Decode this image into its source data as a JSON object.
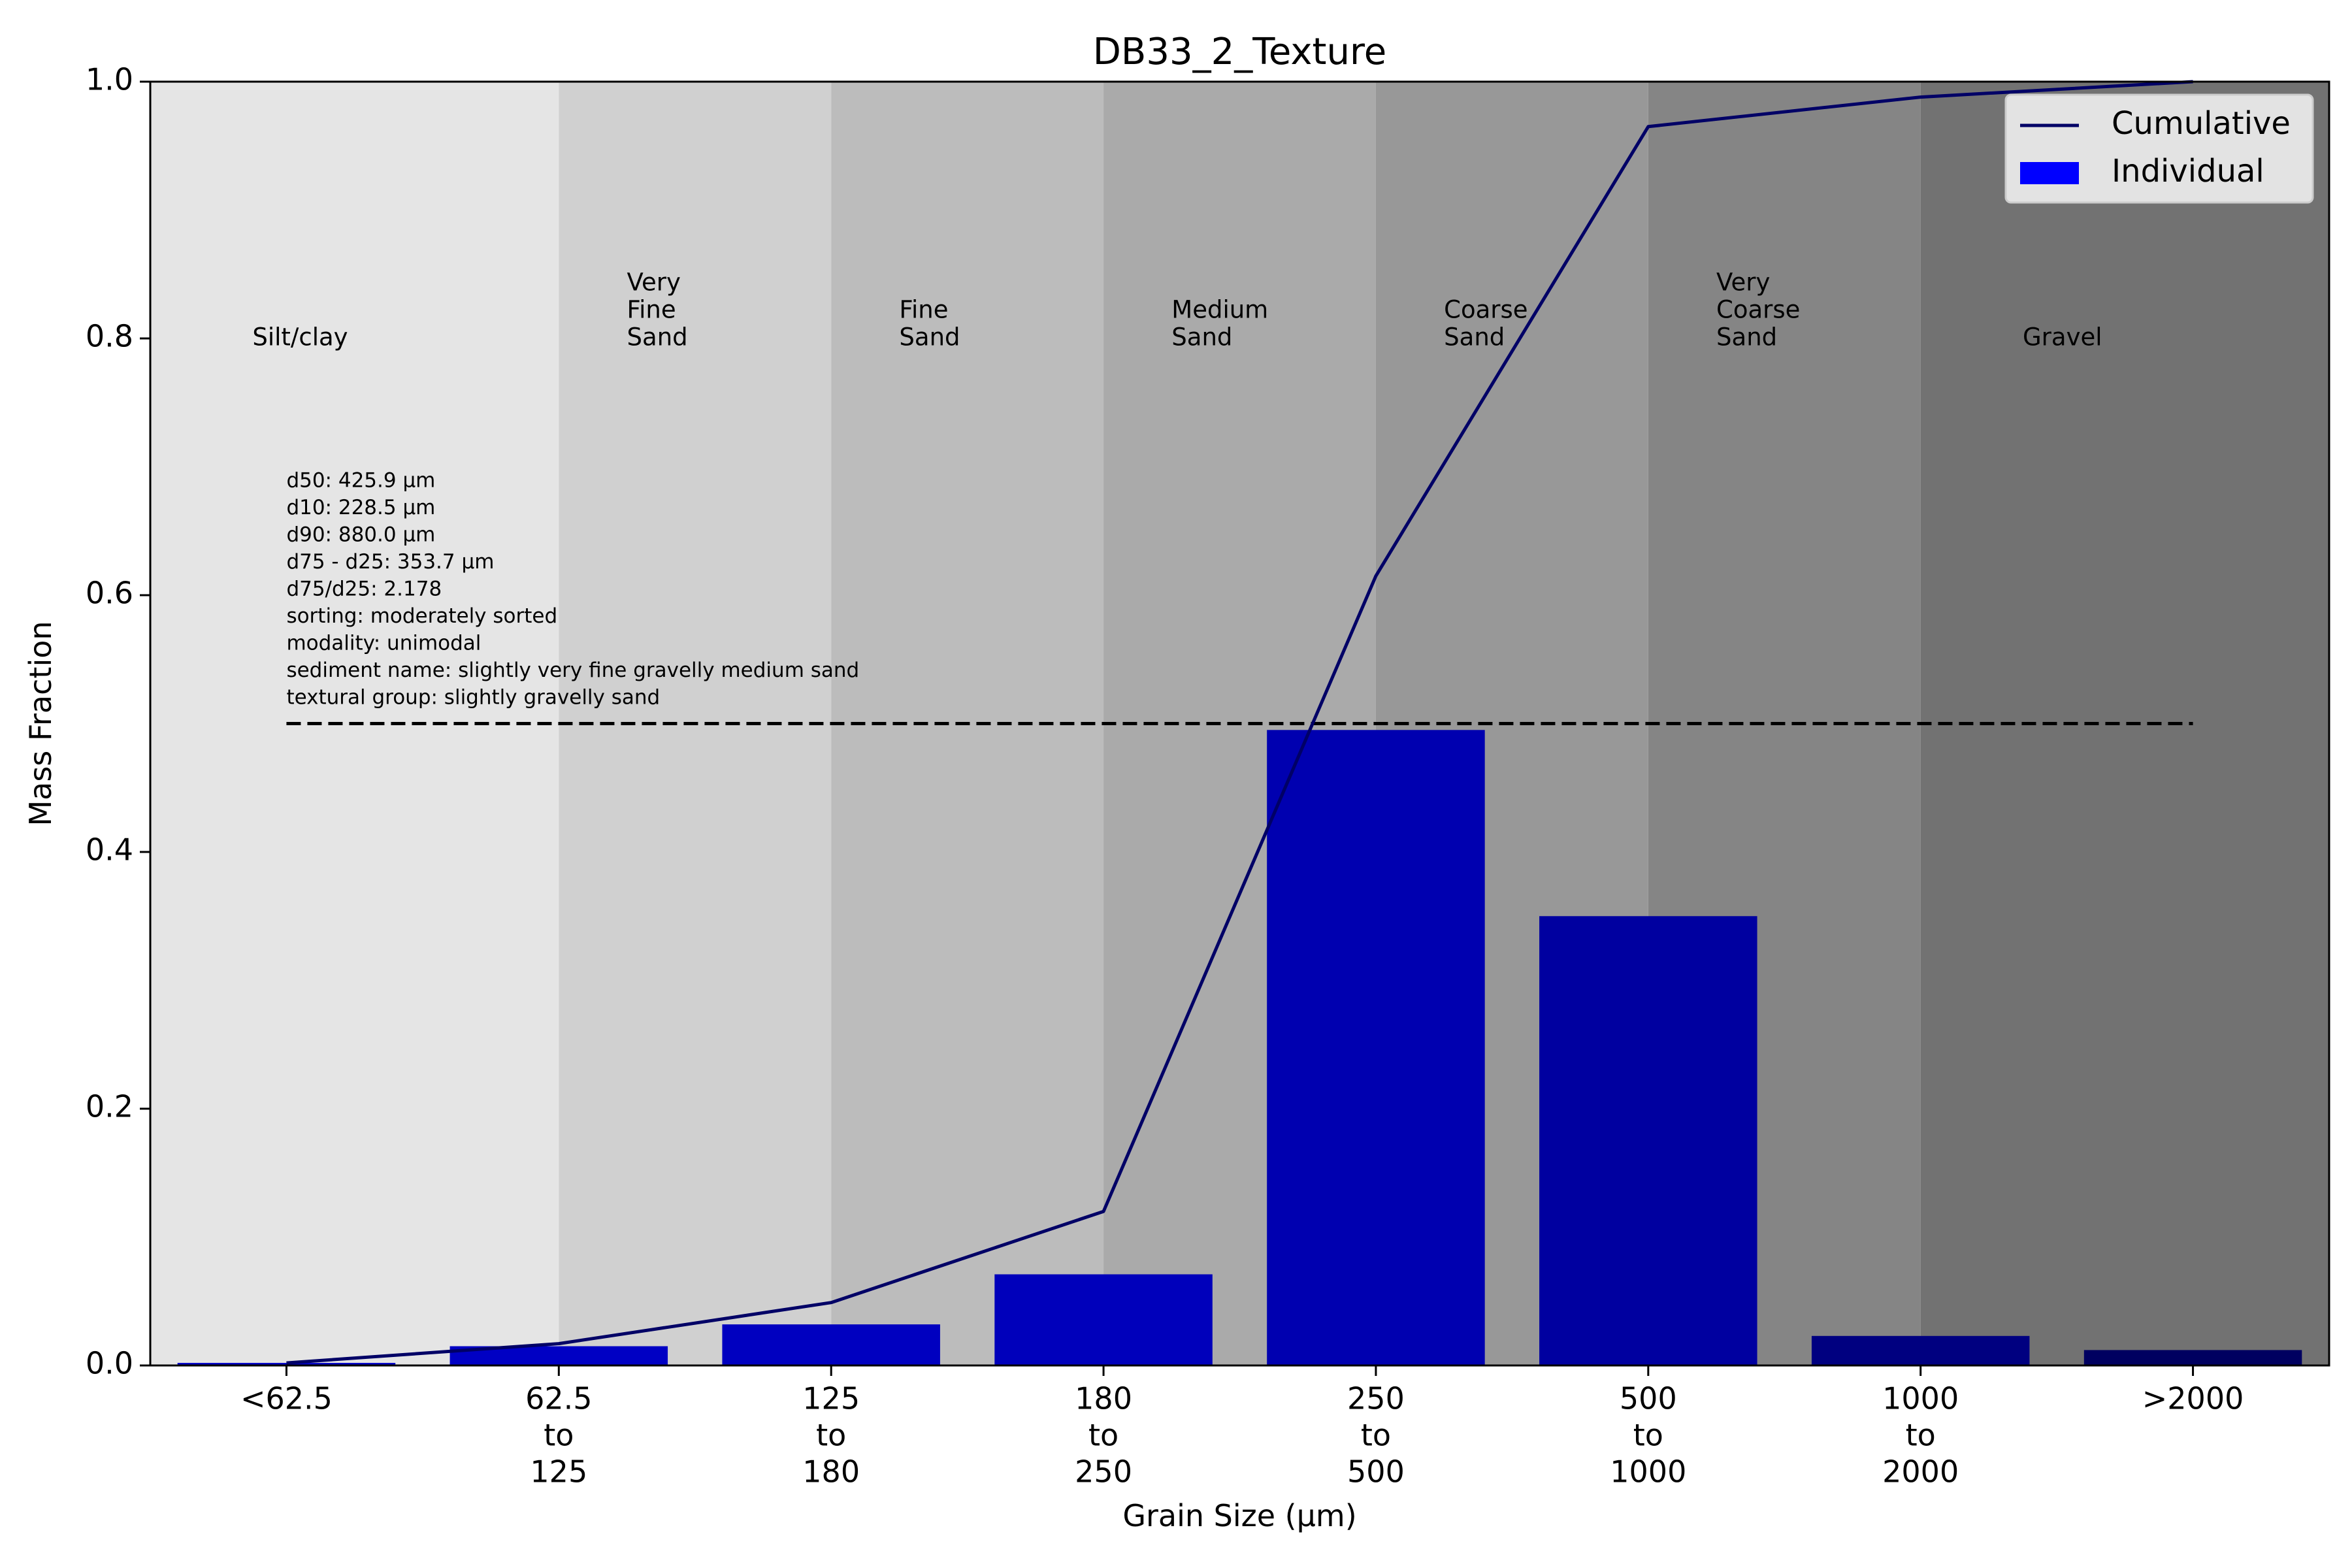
{
  "chart_data": {
    "type": "bar",
    "title": "DB33_2_Texture",
    "xlabel": "Grain Size (μm)",
    "ylabel": "Mass Fraction",
    "ylim": [
      0,
      1
    ],
    "yticks": [
      "0.0",
      "0.2",
      "0.4",
      "0.6",
      "0.8",
      "1.0"
    ],
    "grid": false,
    "categories": [
      [
        "<62.5"
      ],
      [
        "62.5",
        "to",
        "125"
      ],
      [
        "125",
        "to",
        "180"
      ],
      [
        "180",
        "to",
        "250"
      ],
      [
        "250",
        "to",
        "500"
      ],
      [
        "500",
        "to",
        "1000"
      ],
      [
        "1000",
        "to",
        "2000"
      ],
      [
        ">2000"
      ]
    ],
    "series": [
      {
        "name": "Individual",
        "kind": "bar",
        "values": [
          0.002,
          0.015,
          0.032,
          0.071,
          0.495,
          0.35,
          0.023,
          0.012
        ],
        "colors": [
          "#0000c8",
          "#0000c4",
          "#0000c0",
          "#0000bb",
          "#0000b0",
          "#0000a0",
          "#000080",
          "#000060"
        ],
        "legend_color": "#0000ff"
      },
      {
        "name": "Cumulative",
        "kind": "line",
        "values": [
          0.002,
          0.017,
          0.049,
          0.12,
          0.615,
          0.965,
          0.988,
          1.0
        ],
        "color": "#000066"
      }
    ],
    "reference_line": {
      "y": 0.5,
      "style": "dashed",
      "color": "#000000"
    },
    "zones": [
      {
        "lines": [
          "Silt/clay"
        ],
        "color": "#e5e5e5"
      },
      {
        "lines": [
          "Very",
          "Fine",
          "Sand"
        ],
        "color": "#d0d0d0"
      },
      {
        "lines": [
          "Fine",
          "Sand"
        ],
        "color": "#bcbcbc"
      },
      {
        "lines": [
          "Medium",
          "Sand"
        ],
        "color": "#aaaaaa"
      },
      {
        "lines": [
          "Coarse",
          "Sand"
        ],
        "color": "#989898"
      },
      {
        "lines": [
          "Very",
          "Coarse",
          "Sand"
        ],
        "color": "#858585"
      },
      {
        "lines": [
          "Gravel"
        ],
        "color": "#727272"
      }
    ],
    "stats": [
      "d50: 425.9 μm",
      "d10: 228.5 μm",
      "d90: 880.0 μm",
      "d75 - d25: 353.7 μm",
      "d75/d25: 2.178",
      "sorting: moderately sorted",
      "modality: unimodal",
      "sediment name: slightly very fine gravelly medium sand",
      "textural group: slightly gravelly sand"
    ],
    "legend": {
      "position": "top-right",
      "entries": [
        "Cumulative",
        "Individual"
      ]
    }
  }
}
